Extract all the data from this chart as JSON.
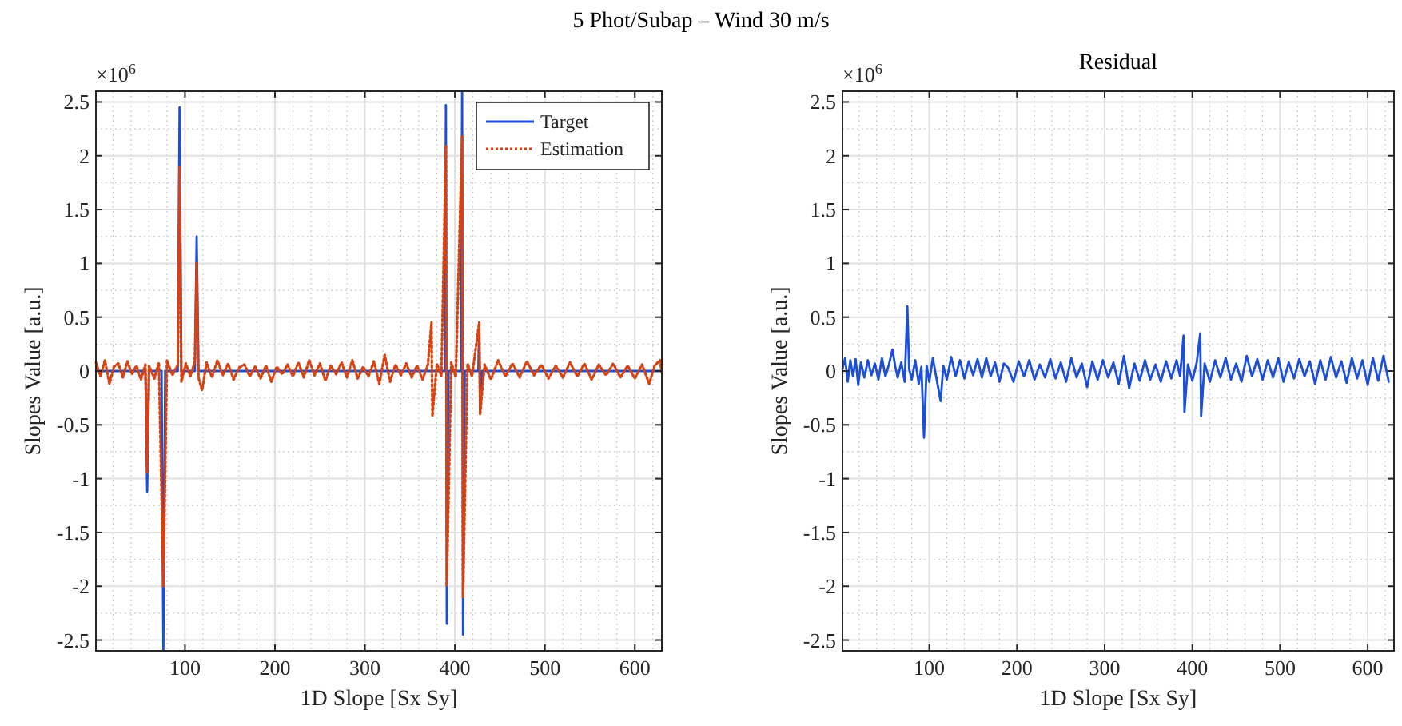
{
  "chart_data": [
    {
      "type": "line",
      "title": "5 Phot/Subap – Wind 30 m/s",
      "xlabel": "1D Slope [Sx Sy]",
      "ylabel": "Slopes Value [a.u.]",
      "annotations": [
        "×10$^{6}$"
      ],
      "xlim": [
        1,
        630
      ],
      "xticks": [
        100,
        200,
        300,
        400,
        500,
        600
      ],
      "ylim": [
        -2.6,
        2.6
      ],
      "yticks": [
        -2.5,
        -2,
        -1.5,
        -1,
        -0.5,
        0,
        0.5,
        1,
        1.5,
        2,
        2.5
      ],
      "grid": true,
      "legend": "top right",
      "series": [
        {
          "name": "Target",
          "color": "#1c4fd6",
          "line_style": "solid",
          "x": [
            1,
            56,
            58,
            60,
            74,
            76,
            78,
            92,
            94,
            96,
            111,
            113,
            115,
            372,
            374,
            375,
            377,
            389,
            390,
            391,
            393,
            407,
            408,
            409,
            411,
            426,
            427,
            428,
            430,
            630
          ],
          "values": [
            0,
            0,
            -1.12,
            0,
            0,
            -2.6,
            0,
            0,
            2.45,
            0,
            0,
            1.25,
            0,
            0,
            null,
            null,
            0,
            0,
            2.47,
            -2.35,
            0,
            0,
            2.6,
            -2.45,
            0,
            0,
            0.45,
            -0.4,
            0,
            0
          ]
        },
        {
          "name": "Estimation",
          "color": "#d9410f",
          "line_style": "dotted",
          "x": [
            1,
            6,
            11,
            16,
            21,
            26,
            31,
            36,
            41,
            46,
            51,
            56,
            58,
            60,
            66,
            71,
            76,
            80,
            86,
            92,
            94,
            96,
            101,
            106,
            111,
            113,
            115,
            119,
            124,
            130,
            136,
            142,
            148,
            154,
            160,
            166,
            172,
            178,
            184,
            190,
            196,
            202,
            208,
            214,
            220,
            226,
            232,
            238,
            244,
            250,
            256,
            262,
            268,
            274,
            280,
            286,
            292,
            298,
            304,
            310,
            316,
            322,
            328,
            334,
            340,
            346,
            352,
            358,
            364,
            370,
            374,
            375,
            380,
            385,
            390,
            391,
            396,
            401,
            408,
            409,
            414,
            419,
            427,
            428,
            433,
            440,
            448,
            456,
            464,
            472,
            480,
            488,
            496,
            504,
            512,
            520,
            528,
            536,
            544,
            552,
            560,
            568,
            576,
            584,
            592,
            600,
            608,
            616,
            622,
            628,
            630
          ],
          "values": [
            0.08,
            -0.05,
            0.1,
            -0.12,
            0.04,
            0.07,
            -0.06,
            0.09,
            -0.03,
            0.05,
            -0.08,
            0.06,
            -0.95,
            0.05,
            -0.07,
            0.08,
            -2.0,
            0.1,
            -0.04,
            0.06,
            1.9,
            -0.1,
            0.07,
            -0.05,
            0.09,
            1.0,
            -0.06,
            -0.18,
            0.08,
            -0.06,
            0.1,
            -0.04,
            0.07,
            -0.08,
            0.03,
            0.06,
            -0.05,
            0.04,
            -0.07,
            0.05,
            -0.1,
            0.04,
            -0.03,
            0.06,
            -0.05,
            0.08,
            -0.06,
            0.1,
            -0.04,
            0.07,
            -0.09,
            0.05,
            -0.03,
            0.08,
            -0.06,
            0.1,
            -0.07,
            0.04,
            -0.05,
            0.09,
            -0.12,
            0.15,
            -0.1,
            0.06,
            -0.04,
            0.07,
            -0.06,
            0.05,
            -0.08,
            0.06,
            0.45,
            -0.42,
            0.07,
            -0.05,
            2.1,
            -2.0,
            0.08,
            -0.06,
            2.18,
            -2.1,
            0.07,
            -0.05,
            0.45,
            -0.4,
            0.06,
            -0.08,
            0.1,
            -0.05,
            0.07,
            -0.06,
            0.09,
            -0.04,
            0.06,
            -0.07,
            0.05,
            -0.06,
            0.08,
            -0.05,
            0.07,
            -0.08,
            0.06,
            -0.04,
            0.07,
            -0.06,
            0.05,
            -0.07,
            0.06,
            -0.12,
            0.05,
            0.1,
            -0.03
          ]
        }
      ]
    },
    {
      "type": "line",
      "title": "Residual",
      "xlabel": "1D Slope [Sx Sy]",
      "ylabel": "Slopes Value [a.u.]",
      "annotations": [
        "×10$^{6}$"
      ],
      "xlim": [
        1,
        630
      ],
      "xticks": [
        100,
        200,
        300,
        400,
        500,
        600
      ],
      "ylim": [
        -2.6,
        2.6
      ],
      "yticks": [
        -2.5,
        -2,
        -1.5,
        -1,
        -0.5,
        0,
        0.5,
        1,
        1.5,
        2,
        2.5
      ],
      "grid": true,
      "series": [
        {
          "color": "#1c4fd6",
          "line_style": "solid",
          "x": [
            1,
            4,
            7,
            10,
            13,
            16,
            19,
            22,
            26,
            30,
            34,
            38,
            42,
            46,
            50,
            54,
            58,
            61,
            64,
            68,
            72,
            75,
            77,
            80,
            84,
            88,
            91,
            94,
            97,
            100,
            104,
            108,
            113,
            116,
            120,
            125,
            130,
            135,
            140,
            145,
            150,
            155,
            160,
            165,
            170,
            175,
            180,
            185,
            190,
            196,
            202,
            208,
            214,
            220,
            226,
            232,
            238,
            244,
            250,
            256,
            262,
            268,
            274,
            280,
            286,
            292,
            298,
            304,
            310,
            316,
            322,
            328,
            334,
            340,
            346,
            352,
            358,
            364,
            370,
            376,
            382,
            386,
            390,
            391,
            395,
            400,
            405,
            409,
            410,
            414,
            420,
            426,
            432,
            438,
            444,
            450,
            456,
            462,
            468,
            474,
            480,
            486,
            492,
            498,
            504,
            510,
            516,
            522,
            528,
            534,
            540,
            546,
            552,
            558,
            564,
            570,
            576,
            582,
            588,
            594,
            600,
            606,
            612,
            618,
            624
          ],
          "values": [
            0.02,
            0.12,
            -0.1,
            0.1,
            -0.05,
            0.11,
            -0.13,
            0.08,
            -0.06,
            0.1,
            -0.04,
            0.07,
            -0.08,
            0.12,
            -0.05,
            0.06,
            0.2,
            0.05,
            -0.06,
            0.08,
            -0.1,
            0.6,
            0.02,
            -0.08,
            0.1,
            -0.12,
            0.04,
            -0.62,
            0.05,
            -0.1,
            0.12,
            -0.06,
            -0.28,
            0.05,
            -0.08,
            0.13,
            -0.05,
            0.1,
            -0.07,
            0.09,
            -0.04,
            0.11,
            -0.06,
            0.12,
            -0.05,
            0.08,
            -0.1,
            0.07,
            0.03,
            -0.1,
            0.09,
            -0.05,
            0.1,
            -0.08,
            0.06,
            -0.06,
            0.11,
            -0.07,
            0.08,
            -0.1,
            0.12,
            -0.06,
            0.07,
            -0.15,
            0.09,
            -0.08,
            0.1,
            -0.06,
            0.08,
            -0.12,
            0.14,
            -0.16,
            0.07,
            -0.09,
            0.1,
            -0.08,
            0.06,
            -0.1,
            0.09,
            -0.07,
            0.1,
            -0.05,
            0.33,
            -0.38,
            0.06,
            -0.09,
            0.08,
            0.35,
            -0.42,
            0.07,
            -0.1,
            0.1,
            -0.06,
            0.12,
            -0.08,
            0.07,
            -0.1,
            0.14,
            -0.05,
            0.11,
            -0.08,
            0.1,
            -0.06,
            0.12,
            -0.1,
            0.08,
            -0.07,
            0.11,
            -0.05,
            0.09,
            -0.12,
            0.1,
            -0.08,
            0.13,
            -0.06,
            0.09,
            -0.11,
            0.12,
            -0.07,
            0.1,
            -0.13,
            0.12,
            -0.09,
            0.14,
            -0.1
          ]
        }
      ]
    }
  ]
}
